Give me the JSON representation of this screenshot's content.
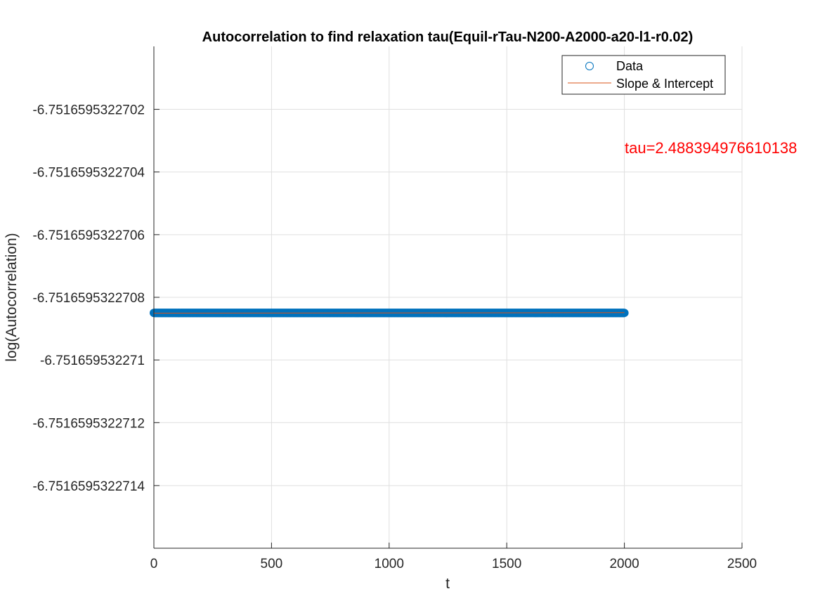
{
  "chart_data": {
    "type": "scatter",
    "title": "Autocorrelation to find relaxation tau(Equil-rTau-N200-A2000-a20-l1-r0.02)",
    "xlabel": "t",
    "ylabel": "log(Autocorrelation)",
    "xlim": [
      0,
      2500
    ],
    "ylim": [
      -6.7516595322716,
      -6.75165953227
    ],
    "x_ticks": [
      0,
      500,
      1000,
      1500,
      2000,
      2500
    ],
    "x_tick_labels": [
      "0",
      "500",
      "1000",
      "1500",
      "2000",
      "2500"
    ],
    "y_ticks": [
      -6.7516595322702,
      -6.7516595322704,
      -6.7516595322706,
      -6.7516595322708,
      -6.751659532271,
      -6.7516595322712,
      -6.7516595322714
    ],
    "y_tick_labels": [
      "-6.7516595322702",
      "-6.7516595322704",
      "-6.7516595322706",
      "-6.7516595322708",
      "-6.751659532271",
      "-6.7516595322712",
      "-6.7516595322714"
    ],
    "grid": true,
    "legend": {
      "placement": "top-right",
      "entries": [
        "Data",
        "Slope & Intercept"
      ]
    },
    "series": [
      {
        "name": "Data",
        "kind": "scatter",
        "marker": "circle",
        "color": "#0072BD",
        "x_start": 0,
        "x_end": 2000,
        "x_step": 2,
        "y": -6.75165953227085
      },
      {
        "name": "Slope & Intercept",
        "kind": "line",
        "color": "#D95319",
        "x": [
          0,
          2000
        ],
        "y": [
          -6.751659532270851,
          -6.751659532270849
        ]
      }
    ],
    "annotations": [
      {
        "text": "tau=2.488394976610138",
        "x": 2000,
        "y": -6.7516595322704,
        "color": "#FF0000"
      }
    ]
  }
}
